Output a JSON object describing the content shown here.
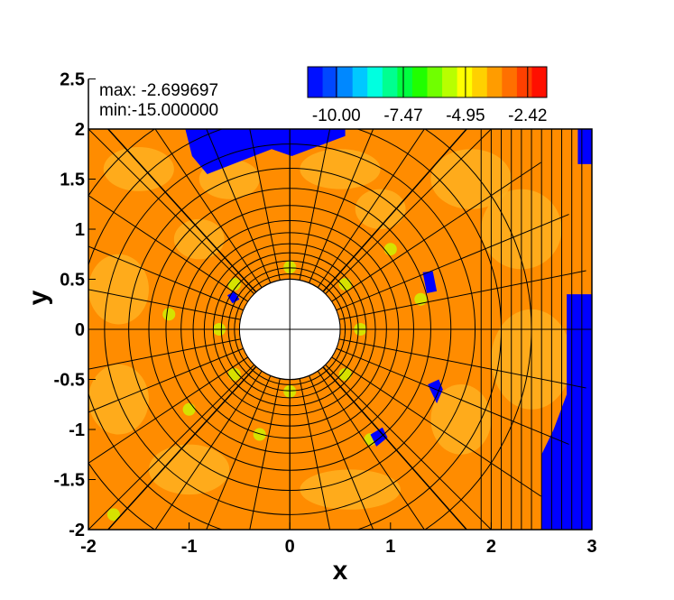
{
  "chart_data": {
    "type": "heatmap",
    "title": "",
    "xlabel": "x",
    "ylabel": "y",
    "xlim": [
      -2,
      3
    ],
    "ylim": [
      -2,
      2
    ],
    "x_ticks": [
      "-2",
      "-1",
      "0",
      "1",
      "2",
      "3"
    ],
    "y_ticks": [
      "-2",
      "-1.5",
      "-1",
      "-0.5",
      "0",
      "0.5",
      "1",
      "1.5",
      "2",
      "2.5"
    ],
    "annotations": {
      "max": "max: -2.699697",
      "min": "min:-15.000000"
    },
    "colorbar": {
      "ticks": [
        "-10.00",
        "-7.47",
        "-4.95",
        "-2.42"
      ],
      "colors": [
        "#0010ff",
        "#0048ff",
        "#0088ff",
        "#00c8ff",
        "#00ffe0",
        "#00ff90",
        "#00ff40",
        "#20ff00",
        "#70ff00",
        "#b8ff00",
        "#ffff00",
        "#ffd000",
        "#ff9c00",
        "#ff7000",
        "#ff4000",
        "#ff1000"
      ]
    },
    "field": {
      "cylinder": {
        "center": [
          0,
          0
        ],
        "radius": 0.5
      },
      "background_color": "#ff8c00",
      "low_value_color": "#0000ff",
      "mid_color": "#ffb020",
      "accent_color": "#c8ff00"
    }
  }
}
